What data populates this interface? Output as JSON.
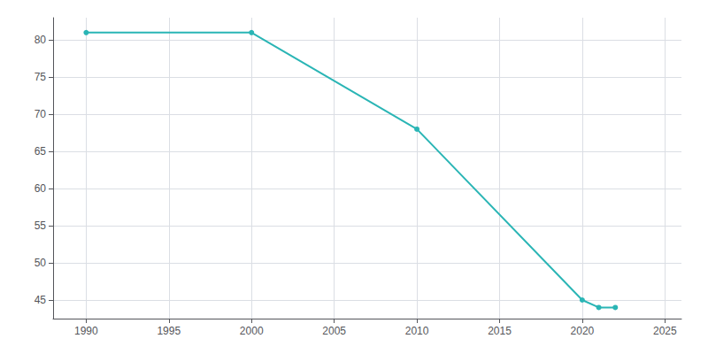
{
  "chart_data": {
    "type": "line",
    "x": [
      1990,
      2000,
      2010,
      2020,
      2021,
      2022
    ],
    "values": [
      81,
      81,
      68,
      45,
      44,
      44
    ],
    "color": "#2ab5b5",
    "marker": "circle",
    "xlim": [
      1988,
      2026
    ],
    "ylim": [
      42.5,
      83
    ],
    "xticks": [
      1990,
      1995,
      2000,
      2005,
      2010,
      2015,
      2020,
      2025
    ],
    "yticks": [
      45,
      50,
      55,
      60,
      65,
      70,
      75,
      80
    ],
    "grid": true
  }
}
